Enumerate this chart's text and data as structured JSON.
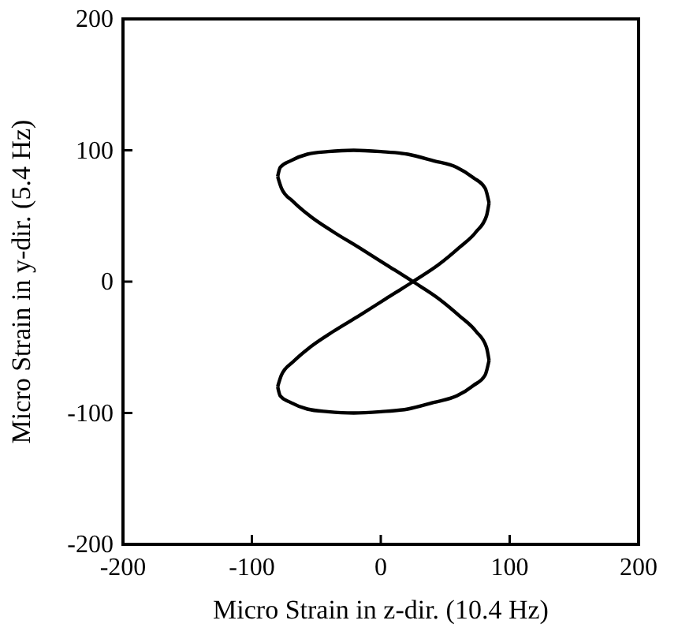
{
  "chart_data": {
    "type": "line",
    "xlabel": "Micro Strain in z-dir. (10.4 Hz)",
    "ylabel": "Micro Strain in y-dir. (5.4 Hz)",
    "xlim": [
      -200,
      200
    ],
    "ylim": [
      -200,
      200
    ],
    "xticks": [
      -200,
      -100,
      0,
      100,
      200
    ],
    "yticks": [
      -200,
      -100,
      0,
      100,
      200
    ],
    "grid": false,
    "marker": "none",
    "line_style": "solid",
    "series": [
      {
        "color": "#000000",
        "x": [
          -80,
          -78,
          -70,
          -57,
          -41,
          -21,
          0,
          21,
          41,
          59,
          72,
          81,
          84
        ],
        "values": [
          80,
          87,
          92,
          97,
          99,
          100,
          99,
          97,
          92,
          87,
          79,
          71,
          60
        ]
      },
      {
        "color": "#000000",
        "x": [
          -80,
          -77,
          -68,
          -55,
          -37,
          -17,
          4,
          25,
          45,
          61,
          74,
          82,
          84
        ],
        "values": [
          -80,
          -71,
          -61,
          -50,
          -38,
          -26,
          -13,
          0,
          13,
          26,
          38,
          50,
          60
        ]
      },
      {
        "color": "#000000",
        "x": [
          -80,
          -78,
          -70,
          -57,
          -41,
          -21,
          0,
          21,
          41,
          59,
          72,
          81,
          84
        ],
        "values": [
          -80,
          -87,
          -92,
          -97,
          -99,
          -100,
          -99,
          -97,
          -92,
          -87,
          -79,
          -71,
          -60
        ]
      },
      {
        "color": "#000000",
        "x": [
          -80,
          -77,
          -68,
          -55,
          -37,
          -17,
          4,
          25,
          45,
          61,
          74,
          82,
          84
        ],
        "values": [
          80,
          71,
          61,
          50,
          38,
          26,
          13,
          0,
          -13,
          -26,
          -38,
          -50,
          -60
        ]
      }
    ]
  }
}
